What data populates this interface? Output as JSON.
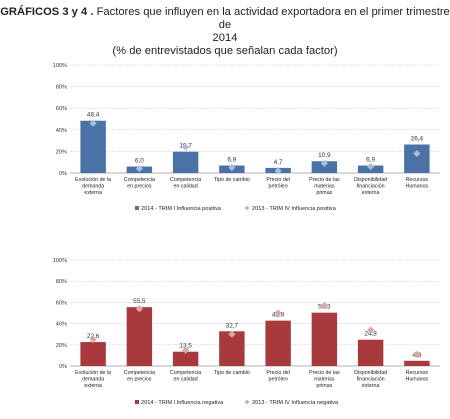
{
  "title": {
    "lead": "GRÁFICOS 3 y 4 .",
    "text": " Factores que influyen en la actividad exportadora en el primer trimestre de",
    "line2": "2014",
    "line3": "(% de entrevistados  que señalan cada factor)"
  },
  "chart_data": [
    {
      "type": "bar",
      "categories": [
        [
          "Evolución de la",
          "demanda",
          "externa"
        ],
        [
          "Competencia",
          "en precios"
        ],
        [
          "Competencia",
          "en calidad"
        ],
        [
          "Tipo de cambio"
        ],
        [
          "Precio del",
          "petróleo"
        ],
        [
          "Precio de las",
          "materias",
          "primas"
        ],
        [
          "Disponibilidad",
          "financiación",
          "externa"
        ],
        [
          "Recursos",
          "Humanos"
        ]
      ],
      "series": [
        {
          "name": "2014 - TRIM I Influencia positiva",
          "kind": "bar",
          "color": "#4a72a6",
          "values": [
            48.4,
            6.0,
            19.7,
            6.9,
            4.7,
            10.9,
            6.9,
            26.4
          ],
          "labels": [
            "48,4",
            "6,0",
            "19,7",
            "6,9",
            "4,7",
            "10,9",
            "6,9",
            "26,4"
          ]
        },
        {
          "name": "2013 - TRIM IV Influencia positiva",
          "kind": "marker",
          "color": "#a9bcd9",
          "values": [
            46,
            4,
            24,
            5,
            2,
            9,
            6,
            18
          ]
        }
      ],
      "yticks": [
        "0%",
        "20%",
        "40%",
        "60%",
        "80%",
        "100%"
      ],
      "ylim": [
        0,
        100
      ]
    },
    {
      "type": "bar",
      "categories": [
        [
          "Evolución de la",
          "demanda",
          "externa"
        ],
        [
          "Competencia",
          "en precios"
        ],
        [
          "Competencia",
          "en calidad"
        ],
        [
          "Tipo de cambio"
        ],
        [
          "Precio del",
          "petróleo"
        ],
        [
          "Precio de las",
          "materias",
          "primas"
        ],
        [
          "Disponibilidad",
          "financiación",
          "externa"
        ],
        [
          "Recursos",
          "Humanos"
        ]
      ],
      "series": [
        {
          "name": "2014 - TRIM I Influencia negativa",
          "kind": "bar",
          "color": "#a83a3e",
          "values": [
            22.6,
            55.5,
            13.5,
            32.7,
            42.8,
            50.3,
            24.8,
            4.9
          ],
          "labels": [
            "22,6",
            "55,5",
            "13,5",
            "32,7",
            "42,8",
            "50,3",
            "24,8",
            "4,9"
          ]
        },
        {
          "name": "2013 - TRIM IV Influencia negativa",
          "kind": "marker",
          "color": "#d9a7a5",
          "values": [
            25,
            54,
            15,
            30,
            50,
            57,
            34,
            11
          ]
        }
      ],
      "yticks": [
        "0%",
        "20%",
        "40%",
        "60%",
        "80%",
        "100%"
      ],
      "ylim": [
        0,
        100
      ]
    }
  ]
}
